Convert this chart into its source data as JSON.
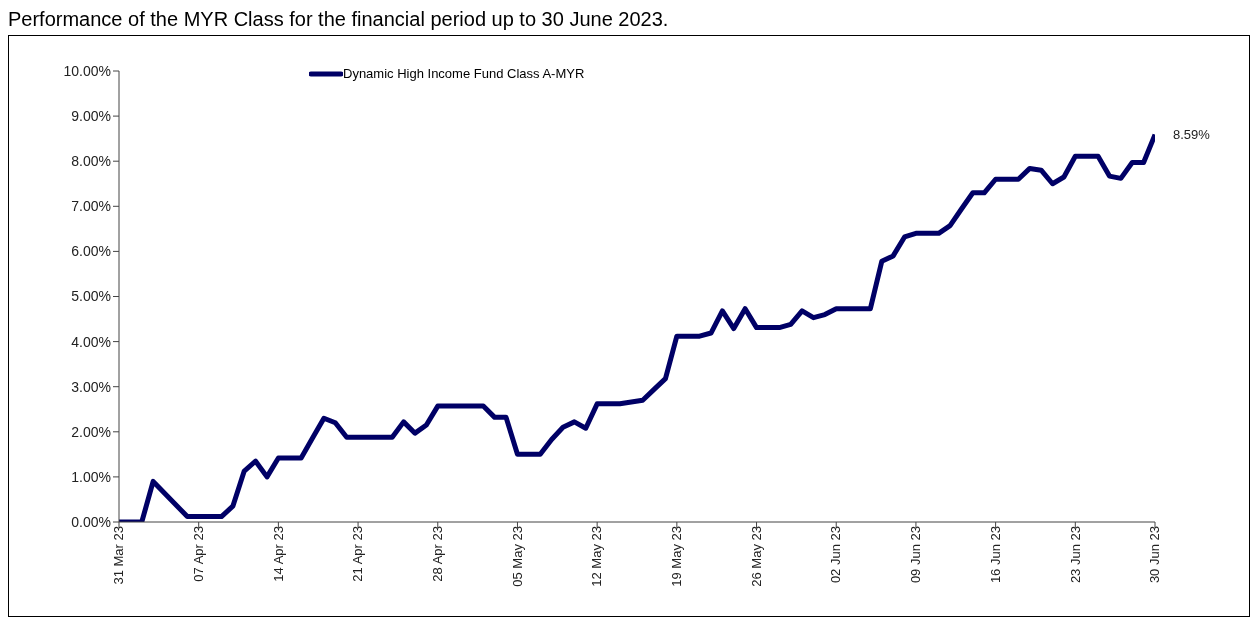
{
  "chart_data": {
    "type": "line",
    "title": "Performance of the MYR Class for the financial period up to 30 June 2023.",
    "x": [
      "2023-03-31",
      "2023-04-02",
      "2023-04-03",
      "2023-04-06",
      "2023-04-09",
      "2023-04-10",
      "2023-04-11",
      "2023-04-12",
      "2023-04-13",
      "2023-04-14",
      "2023-04-16",
      "2023-04-17",
      "2023-04-18",
      "2023-04-19",
      "2023-04-20",
      "2023-04-24",
      "2023-04-25",
      "2023-04-26",
      "2023-04-27",
      "2023-04-28",
      "2023-05-02",
      "2023-05-03",
      "2023-05-04",
      "2023-05-05",
      "2023-05-07",
      "2023-05-08",
      "2023-05-09",
      "2023-05-10",
      "2023-05-11",
      "2023-05-12",
      "2023-05-14",
      "2023-05-16",
      "2023-05-17",
      "2023-05-18",
      "2023-05-19",
      "2023-05-21",
      "2023-05-22",
      "2023-05-23",
      "2023-05-24",
      "2023-05-25",
      "2023-05-26",
      "2023-05-28",
      "2023-05-29",
      "2023-05-30",
      "2023-05-31",
      "2023-06-01",
      "2023-06-02",
      "2023-06-05",
      "2023-06-06",
      "2023-06-07",
      "2023-06-08",
      "2023-06-09",
      "2023-06-11",
      "2023-06-12",
      "2023-06-13",
      "2023-06-14",
      "2023-06-15",
      "2023-06-16",
      "2023-06-18",
      "2023-06-19",
      "2023-06-20",
      "2023-06-21",
      "2023-06-22",
      "2023-06-23",
      "2023-06-25",
      "2023-06-26",
      "2023-06-27",
      "2023-06-28",
      "2023-06-29",
      "2023-06-30"
    ],
    "series": [
      {
        "name": "Dynamic High Income Fund Class A-MYR",
        "color": "#000066",
        "values": [
          0,
          0,
          0.9,
          0.12,
          0.12,
          0.35,
          1.13,
          1.35,
          1.0,
          1.42,
          1.42,
          1.86,
          2.3,
          2.2,
          1.88,
          1.88,
          2.22,
          1.97,
          2.15,
          2.57,
          2.57,
          2.32,
          2.32,
          1.5,
          1.5,
          1.83,
          2.1,
          2.22,
          2.08,
          2.62,
          2.62,
          2.7,
          2.94,
          3.18,
          4.12,
          4.12,
          4.19,
          4.68,
          4.29,
          4.73,
          4.31,
          4.31,
          4.38,
          4.68,
          4.53,
          4.6,
          4.73,
          4.73,
          5.78,
          5.9,
          6.32,
          6.4,
          6.4,
          6.57,
          6.94,
          7.3,
          7.3,
          7.6,
          7.6,
          7.84,
          7.8,
          7.5,
          7.65,
          8.11,
          8.11,
          7.67,
          7.62,
          7.97,
          7.97,
          8.59
        ]
      }
    ],
    "xlim": [
      "2023-03-31",
      "2023-06-30"
    ],
    "xticks": [
      {
        "value": "2023-03-31",
        "label": "31 Mar 23"
      },
      {
        "value": "2023-04-07",
        "label": "07 Apr 23"
      },
      {
        "value": "2023-04-14",
        "label": "14 Apr 23"
      },
      {
        "value": "2023-04-21",
        "label": "21 Apr 23"
      },
      {
        "value": "2023-04-28",
        "label": "28 Apr 23"
      },
      {
        "value": "2023-05-05",
        "label": "05 May 23"
      },
      {
        "value": "2023-05-12",
        "label": "12 May 23"
      },
      {
        "value": "2023-05-19",
        "label": "19 May 23"
      },
      {
        "value": "2023-05-26",
        "label": "26 May 23"
      },
      {
        "value": "2023-06-02",
        "label": "02 Jun 23"
      },
      {
        "value": "2023-06-09",
        "label": "09 Jun 23"
      },
      {
        "value": "2023-06-16",
        "label": "16 Jun 23"
      },
      {
        "value": "2023-06-23",
        "label": "23 Jun 23"
      },
      {
        "value": "2023-06-30",
        "label": "30 Jun 23"
      }
    ],
    "ylim": [
      0,
      10
    ],
    "yticks": [
      {
        "value": 0,
        "label": "0.00%"
      },
      {
        "value": 1,
        "label": "1.00%"
      },
      {
        "value": 2,
        "label": "2.00%"
      },
      {
        "value": 3,
        "label": "3.00%"
      },
      {
        "value": 4,
        "label": "4.00%"
      },
      {
        "value": 5,
        "label": "5.00%"
      },
      {
        "value": 6,
        "label": "6.00%"
      },
      {
        "value": 7,
        "label": "7.00%"
      },
      {
        "value": 8,
        "label": "8.00%"
      },
      {
        "value": 9,
        "label": "9.00%"
      },
      {
        "value": 10,
        "label": "10.00%"
      }
    ],
    "annotations": [
      {
        "text": "8.59%",
        "x": "2023-06-30",
        "y": 8.59
      }
    ],
    "grid": false,
    "legend": "top",
    "marker": "none",
    "line_style": "solid"
  }
}
